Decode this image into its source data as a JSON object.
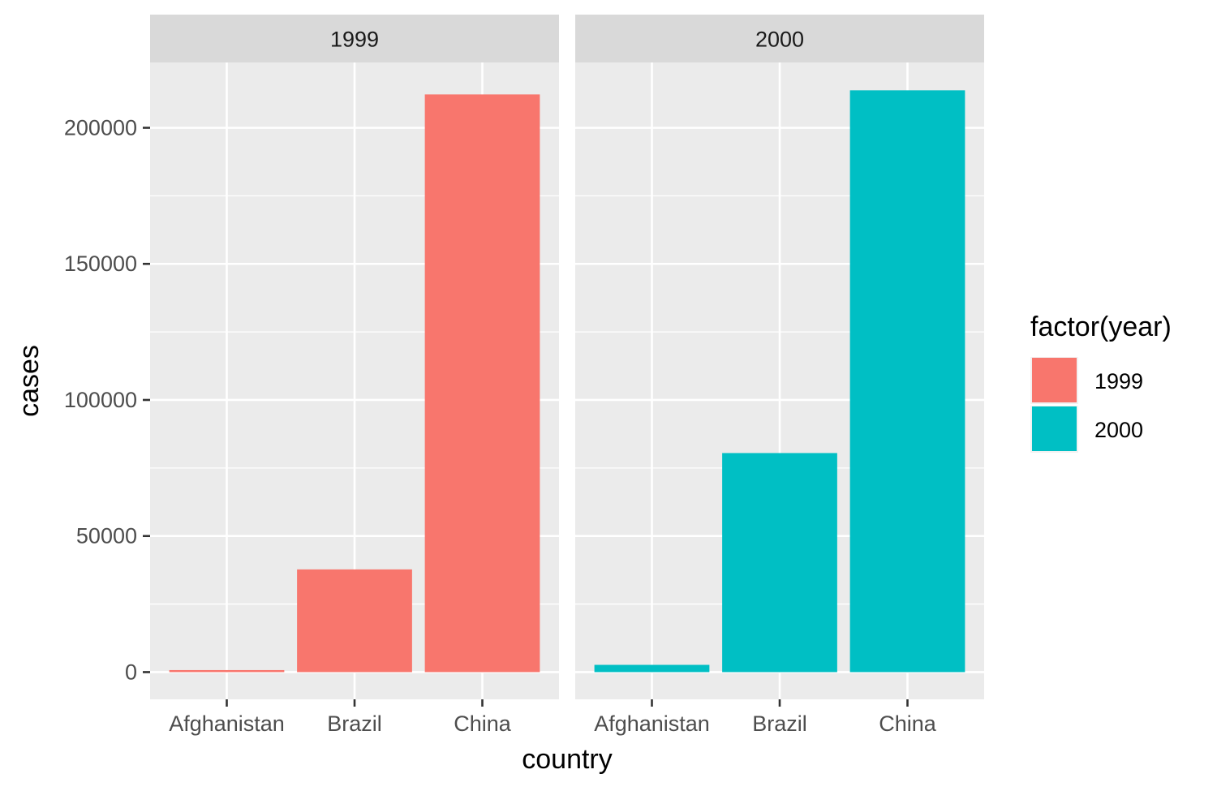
{
  "chart_data": {
    "type": "bar",
    "facet_variable": "year",
    "panels": [
      {
        "strip_label": "1999",
        "categories": [
          "Afghanistan",
          "Brazil",
          "China"
        ],
        "values": [
          745,
          37737,
          212258
        ],
        "fill_key": "1999"
      },
      {
        "strip_label": "2000",
        "categories": [
          "Afghanistan",
          "Brazil",
          "China"
        ],
        "values": [
          2666,
          80488,
          213766
        ],
        "fill_key": "2000"
      }
    ],
    "xlabel": "country",
    "ylabel": "cases",
    "ylim": [
      -10000,
      224000
    ],
    "yticks": [
      0,
      50000,
      100000,
      150000,
      200000
    ],
    "ytick_labels": [
      "0",
      "50000",
      "100000",
      "150000",
      "200000"
    ],
    "grid": true,
    "legend": {
      "title": "factor(year)",
      "position": "right",
      "entries": [
        {
          "label": "1999",
          "color": "#F8766D"
        },
        {
          "label": "2000",
          "color": "#00BFC4"
        }
      ]
    },
    "colors": {
      "panel_background": "#EBEBEB",
      "strip_background": "#D9D9D9",
      "gridline": "#FFFFFF"
    }
  }
}
